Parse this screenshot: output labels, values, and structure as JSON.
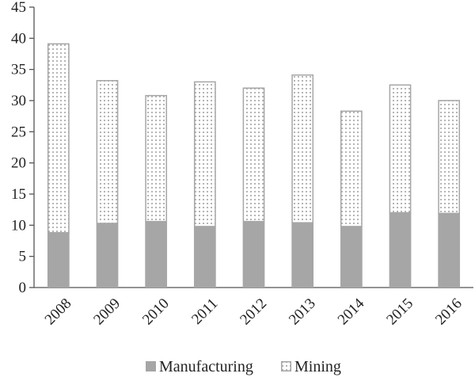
{
  "chart_data": {
    "type": "bar",
    "stacked": true,
    "categories": [
      "2008",
      "2009",
      "2010",
      "2011",
      "2012",
      "2013",
      "2014",
      "2015",
      "2016"
    ],
    "series": [
      {
        "name": "Manufacturing",
        "values": [
          8.8,
          10.3,
          10.6,
          9.8,
          10.6,
          10.4,
          9.8,
          12.0,
          11.9
        ],
        "color": "#a6a6a6",
        "pattern": "solid"
      },
      {
        "name": "Mining",
        "values": [
          30.4,
          23.0,
          20.3,
          23.3,
          21.5,
          23.8,
          18.6,
          20.6,
          18.2
        ],
        "color": "#a6a6a6",
        "pattern": "dotted"
      }
    ],
    "yticks": [
      "0",
      "5",
      "10",
      "15",
      "20",
      "25",
      "30",
      "35",
      "40",
      "45"
    ],
    "ylim": [
      0,
      45
    ],
    "grid": false,
    "legend_position": "bottom",
    "title": "",
    "xlabel": "",
    "ylabel": ""
  }
}
